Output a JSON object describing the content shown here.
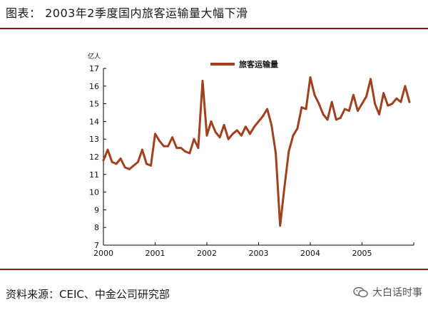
{
  "header": {
    "title": "图表： 2003年2季度国内旅客运输量大幅下滑"
  },
  "footer": {
    "source": "资料来源：CEIC、中金公司研究部",
    "watermark": "大白话时事"
  },
  "colors": {
    "series": "#a0401e",
    "rule": "#8b1a1a",
    "axis": "#000000"
  },
  "chart_data": {
    "type": "line",
    "title": "",
    "ylabel": "亿人",
    "xlabel": "",
    "ylim": [
      7,
      17
    ],
    "yticks": [
      7,
      8,
      9,
      10,
      11,
      12,
      13,
      14,
      15,
      16,
      17
    ],
    "xlim": [
      2000,
      2006
    ],
    "xticks": [
      2000,
      2001,
      2002,
      2003,
      2004,
      2005
    ],
    "grid": false,
    "legend": "top-center",
    "series": [
      {
        "name": "旅客运输量",
        "x": [
          2000.0,
          2000.083,
          2000.167,
          2000.25,
          2000.333,
          2000.417,
          2000.5,
          2000.583,
          2000.667,
          2000.75,
          2000.833,
          2000.917,
          2001.0,
          2001.083,
          2001.167,
          2001.25,
          2001.333,
          2001.417,
          2001.5,
          2001.583,
          2001.667,
          2001.75,
          2001.833,
          2001.917,
          2002.0,
          2002.083,
          2002.167,
          2002.25,
          2002.333,
          2002.417,
          2002.5,
          2002.583,
          2002.667,
          2002.75,
          2002.833,
          2002.917,
          2003.0,
          2003.083,
          2003.167,
          2003.25,
          2003.333,
          2003.417,
          2003.5,
          2003.583,
          2003.667,
          2003.75,
          2003.833,
          2003.917,
          2004.0,
          2004.083,
          2004.167,
          2004.25,
          2004.333,
          2004.417,
          2004.5,
          2004.583,
          2004.667,
          2004.75,
          2004.833,
          2004.917,
          2005.0,
          2005.083,
          2005.167,
          2005.25,
          2005.333,
          2005.417,
          2005.5,
          2005.583,
          2005.667,
          2005.75,
          2005.833,
          2005.917
        ],
        "values": [
          11.8,
          12.4,
          11.7,
          11.6,
          11.9,
          11.4,
          11.3,
          11.5,
          11.7,
          12.4,
          11.6,
          11.5,
          13.3,
          12.9,
          12.6,
          12.6,
          13.1,
          12.5,
          12.5,
          12.3,
          12.2,
          13.0,
          12.5,
          16.3,
          13.2,
          14.0,
          13.4,
          13.1,
          13.8,
          13.0,
          13.3,
          13.5,
          13.2,
          13.7,
          13.3,
          13.7,
          14.0,
          14.3,
          14.7,
          13.8,
          12.2,
          8.1,
          10.3,
          12.3,
          13.2,
          13.6,
          14.8,
          14.7,
          16.5,
          15.5,
          15.0,
          14.4,
          14.1,
          15.1,
          14.1,
          14.2,
          14.7,
          14.6,
          15.5,
          14.6,
          15.0,
          15.4,
          16.4,
          15.0,
          14.4,
          15.6,
          14.9,
          15.0,
          15.3,
          15.1,
          16.0,
          15.1
        ]
      }
    ]
  }
}
